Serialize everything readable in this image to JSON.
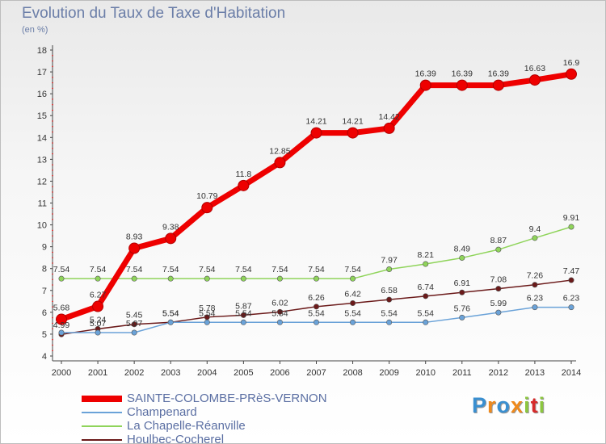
{
  "header": {
    "title": "Evolution du Taux de Taxe d'Habitation",
    "unit": "(en %)"
  },
  "logo": {
    "text": "Proxiti",
    "letter_colors": [
      "#3a8fd0",
      "#f08a1c",
      "#3a8fd0",
      "#f08a1c",
      "#8cc63f",
      "#d62b2b",
      "#8cc63f"
    ]
  },
  "chart_data": {
    "type": "line",
    "x": [
      "2000",
      "2001",
      "2002",
      "2003",
      "2004",
      "2005",
      "2006",
      "2007",
      "2008",
      "2009",
      "2010",
      "2011",
      "2012",
      "2013",
      "2014"
    ],
    "ylim": [
      4,
      18
    ],
    "yticks": [
      "4",
      "5",
      "6",
      "7",
      "8",
      "9",
      "10",
      "11",
      "12",
      "13",
      "14",
      "15",
      "16",
      "17",
      "18"
    ],
    "grid": false,
    "legend_position": "bottom-left",
    "series": [
      {
        "name": "Houlbec-Cocherel",
        "color": "#6b1a1a",
        "values": [
          4.99,
          5.24,
          5.45,
          5.54,
          5.78,
          5.87,
          6.02,
          6.26,
          6.42,
          6.58,
          6.74,
          6.91,
          7.08,
          7.26,
          7.47
        ],
        "labels": [
          "4.99",
          "5.24",
          "5.45",
          "5.54",
          "5.78",
          "5.87",
          "6.02",
          "6.26",
          "6.42",
          "6.58",
          "6.74",
          "6.91",
          "7.08",
          "7.26",
          "7.47"
        ]
      },
      {
        "name": "La Chapelle-Réanville",
        "color": "#8fd45a",
        "values": [
          7.54,
          7.54,
          7.54,
          7.54,
          7.54,
          7.54,
          7.54,
          7.54,
          7.54,
          7.97,
          8.21,
          8.49,
          8.87,
          9.4,
          9.91
        ],
        "labels": [
          "7.54",
          "7.54",
          "7.54",
          "7.54",
          "7.54",
          "7.54",
          "7.54",
          "7.54",
          "7.54",
          "7.97",
          "8.21",
          "8.49",
          "8.87",
          "9.4",
          "9.91"
        ]
      },
      {
        "name": "Champenard",
        "color": "#6aa2d8",
        "values": [
          5.07,
          5.07,
          5.07,
          5.54,
          5.54,
          5.54,
          5.54,
          5.54,
          5.54,
          5.54,
          5.54,
          5.76,
          5.99,
          6.23,
          6.23
        ],
        "labels": [
          "",
          "5.07",
          "5.07",
          "5.54",
          "5.54",
          "5.54",
          "5.54",
          "5.54",
          "5.54",
          "5.54",
          "5.54",
          "5.76",
          "5.99",
          "6.23",
          "6.23"
        ]
      },
      {
        "name": "SAINTE-COLOMBE-PRèS-VERNON",
        "color": "#ee0000",
        "values": [
          5.68,
          6.27,
          8.93,
          9.38,
          10.79,
          11.8,
          12.85,
          14.21,
          14.21,
          14.42,
          16.39,
          16.39,
          16.39,
          16.63,
          16.9
        ],
        "labels": [
          "5.68",
          "6.27",
          "8.93",
          "9.38",
          "10.79",
          "11.8",
          "12.85",
          "14.21",
          "14.21",
          "14.42",
          "16.39",
          "16.39",
          "16.39",
          "16.63",
          "16.9"
        ]
      }
    ]
  }
}
